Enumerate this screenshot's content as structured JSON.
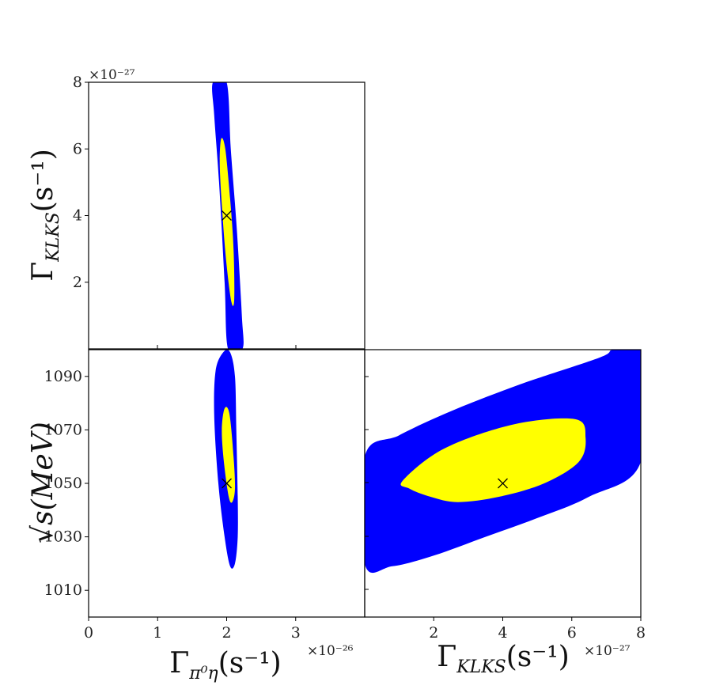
{
  "chart_data": [
    {
      "type": "contour",
      "panel": "top-left",
      "xlim": [
        0,
        4e-26
      ],
      "ylim": [
        0,
        8e-27
      ],
      "xticks": [],
      "yticks": [
        {
          "value": 2e-27,
          "label": "2"
        },
        {
          "value": 4e-27,
          "label": "4"
        },
        {
          "value": 6e-27,
          "label": "6"
        },
        {
          "value": 8e-27,
          "label": "8"
        }
      ],
      "y_multiplier": "×10⁻²⁷",
      "ylabel": "Γ_{K_L K_S}(s⁻¹)",
      "contours": [
        {
          "name": "",
          "color": "#0000ff",
          "points": [
            [
              1.8e-26,
              8e-27
            ],
            [
              2e-26,
              8e-27
            ],
            [
              2.06e-26,
              6e-27
            ],
            [
              2.15e-26,
              3.5e-27
            ],
            [
              2.22e-26,
              1e-27
            ],
            [
              2.23e-26,
              0
            ],
            [
              2.02e-26,
              0
            ],
            [
              1.97e-26,
              2e-27
            ],
            [
              1.89e-26,
              5e-27
            ],
            [
              1.82e-26,
              7e-27
            ]
          ]
        },
        {
          "name": "",
          "color": "#ffff00",
          "points": [
            [
              1.92e-26,
              6.3e-27
            ],
            [
              1.98e-26,
              6e-27
            ],
            [
              2.05e-26,
              4.5e-27
            ],
            [
              2.1e-26,
              3e-27
            ],
            [
              2.11e-26,
              1.5e-27
            ],
            [
              2.07e-26,
              1.4e-27
            ],
            [
              2e-26,
              2.5e-27
            ],
            [
              1.94e-26,
              4e-27
            ],
            [
              1.9e-26,
              5.5e-27
            ]
          ]
        }
      ],
      "best_fit": {
        "x": 2e-26,
        "y": 4e-27,
        "marker": "x"
      }
    },
    {
      "type": "contour",
      "panel": "bottom-left",
      "xlim": [
        0,
        4e-26
      ],
      "ylim": [
        1000,
        1100
      ],
      "xticks": [
        {
          "value": 0,
          "label": "0"
        },
        {
          "value": 1e-26,
          "label": "1"
        },
        {
          "value": 2e-26,
          "label": "2"
        },
        {
          "value": 3e-26,
          "label": "3"
        }
      ],
      "yticks": [
        {
          "value": 1010,
          "label": "1010"
        },
        {
          "value": 1030,
          "label": "1030"
        },
        {
          "value": 1050,
          "label": "1050"
        },
        {
          "value": 1070,
          "label": "1070"
        },
        {
          "value": 1090,
          "label": "1090"
        }
      ],
      "x_multiplier": "×10⁻²⁶",
      "xlabel": "Γ_{π⁰η}(s⁻¹)",
      "ylabel": "√s(MeV)",
      "contours": [
        {
          "name": "",
          "color": "#0000ff",
          "points": [
            [
              1.95e-26,
              1099
            ],
            [
              2.05e-26,
              1099
            ],
            [
              2.12e-26,
              1090
            ],
            [
              2.14e-26,
              1070
            ],
            [
              2.16e-26,
              1045
            ],
            [
              2.16e-26,
              1030
            ],
            [
              2.12e-26,
              1020
            ],
            [
              2.05e-26,
              1019
            ],
            [
              1.97e-26,
              1030
            ],
            [
              1.88e-26,
              1050
            ],
            [
              1.82e-26,
              1075
            ],
            [
              1.84e-26,
              1092
            ]
          ]
        },
        {
          "name": "",
          "color": "#ffff00",
          "points": [
            [
              1.97e-26,
              1078
            ],
            [
              2.04e-26,
              1076
            ],
            [
              2.1e-26,
              1060
            ],
            [
              2.12e-26,
              1048
            ],
            [
              2.08e-26,
              1043
            ],
            [
              2.03e-26,
              1045
            ],
            [
              1.96e-26,
              1058
            ],
            [
              1.93e-26,
              1070
            ]
          ]
        }
      ],
      "best_fit": {
        "x": 2e-26,
        "y": 1050,
        "marker": "x"
      }
    },
    {
      "type": "contour",
      "panel": "bottom-right",
      "xlim": [
        0,
        8e-27
      ],
      "ylim": [
        1000,
        1100
      ],
      "xticks": [
        {
          "value": 2e-27,
          "label": "2"
        },
        {
          "value": 4e-27,
          "label": "4"
        },
        {
          "value": 6e-27,
          "label": "6"
        },
        {
          "value": 8e-27,
          "label": "8"
        }
      ],
      "yticks": [],
      "x_multiplier": "×10⁻²⁷",
      "xlabel": "Γ_{K_L K_S}(s⁻¹)",
      "contours": [
        {
          "name": "",
          "color": "#0000ff",
          "points": [
            [
              0,
              1060
            ],
            [
              1e-27,
              1068
            ],
            [
              2.5e-27,
              1077
            ],
            [
              4.5e-27,
              1087
            ],
            [
              6.8e-27,
              1097
            ],
            [
              7.2e-27,
              1100
            ],
            [
              8e-27,
              1100
            ],
            [
              8e-27,
              1058
            ],
            [
              6.5e-27,
              1045
            ],
            [
              5e-27,
              1037
            ],
            [
              3.5e-27,
              1030
            ],
            [
              2e-27,
              1023
            ],
            [
              8e-28,
              1019
            ],
            [
              0,
              1020
            ]
          ]
        },
        {
          "name": "",
          "color": "#ffff00",
          "points": [
            [
              1.1e-27,
              1051
            ],
            [
              2.3e-27,
              1063
            ],
            [
              4.3e-27,
              1072
            ],
            [
              6.1e-27,
              1074
            ],
            [
              6.4e-27,
              1067
            ],
            [
              6.2e-27,
              1058
            ],
            [
              5.2e-27,
              1050
            ],
            [
              3.9e-27,
              1045
            ],
            [
              2.7e-27,
              1043
            ],
            [
              1.9e-27,
              1045
            ],
            [
              1.3e-27,
              1048
            ]
          ]
        }
      ],
      "best_fit": {
        "x": 4e-27,
        "y": 1050,
        "marker": "x"
      }
    }
  ],
  "labels": {
    "top_multiplier": "×10⁻²⁷",
    "bl_multiplier": "×10⁻²⁶",
    "br_multiplier": "×10⁻²⁷",
    "ylabel_top": "Γ",
    "ylabel_top_sub": "KLKS",
    "ylabel_top_paren": "(s⁻¹)",
    "ylabel_bottom": "√s(MeV)",
    "xlabel_left": "Γ",
    "xlabel_left_sub": "π⁰η",
    "xlabel_left_paren": "(s⁻¹)",
    "xlabel_right": "Γ",
    "xlabel_right_sub": "KLKS",
    "xlabel_right_paren": "(s⁻¹)"
  }
}
